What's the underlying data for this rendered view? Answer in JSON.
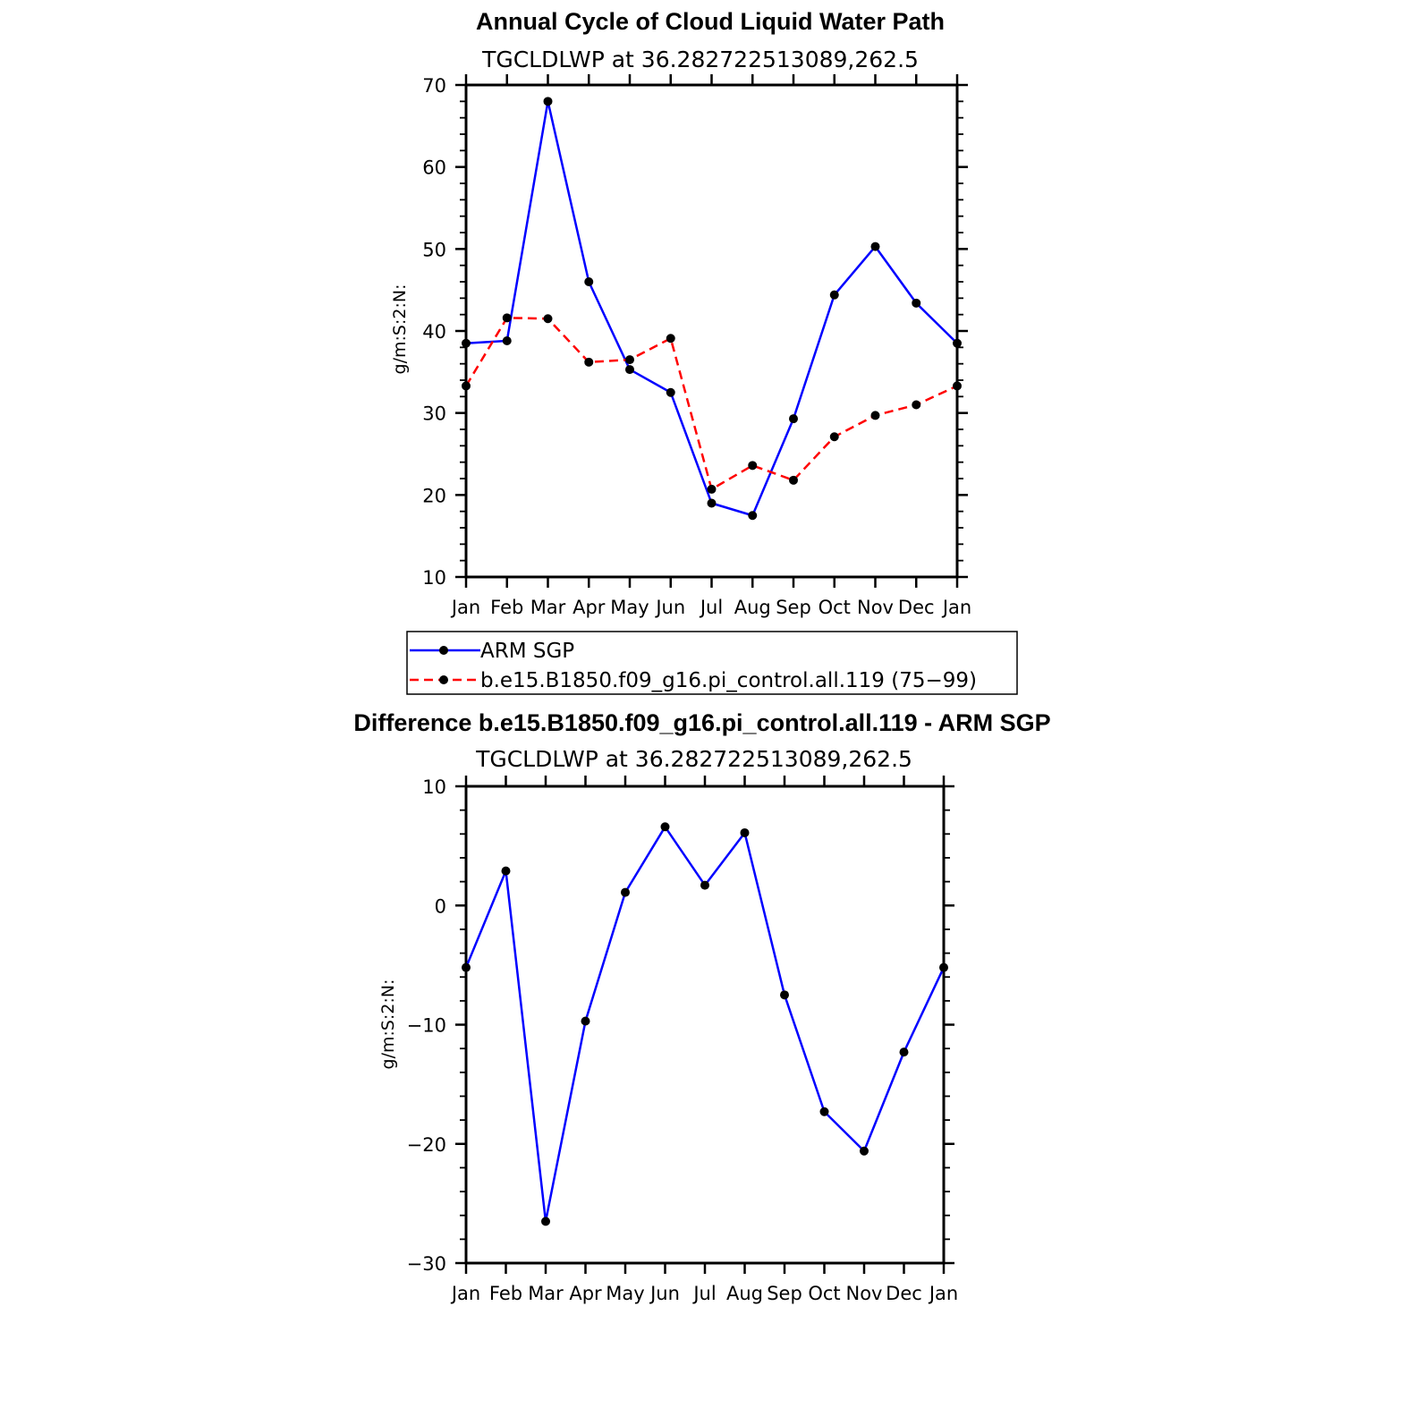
{
  "chart_data": [
    {
      "type": "line",
      "title": "Annual Cycle of Cloud Liquid Water Path",
      "subtitle": "TGCLDLWP  at  36.282722513089,262.5",
      "ylabel": "g/m:S:2:N:",
      "categories": [
        "Jan",
        "Feb",
        "Mar",
        "Apr",
        "May",
        "Jun",
        "Jul",
        "Aug",
        "Sep",
        "Oct",
        "Nov",
        "Dec",
        "Jan"
      ],
      "ylim": [
        10,
        70
      ],
      "yticks": [
        10,
        20,
        30,
        40,
        50,
        60,
        70
      ],
      "series": [
        {
          "name": "ARM SGP",
          "color": "#0000ff",
          "dashed": false,
          "values": [
            38.5,
            38.8,
            68.0,
            46.0,
            35.3,
            32.5,
            19.0,
            17.5,
            29.3,
            44.4,
            50.3,
            43.4,
            38.5
          ]
        },
        {
          "name": "b.e15.B1850.f09_g16.pi_control.all.119 (75−99)",
          "color": "#ff0000",
          "dashed": true,
          "values": [
            33.3,
            41.6,
            41.5,
            36.2,
            36.5,
            39.1,
            20.7,
            23.6,
            21.8,
            27.1,
            29.7,
            31.0,
            33.3
          ]
        }
      ],
      "legend": "below"
    },
    {
      "type": "line",
      "title": "Difference b.e15.B1850.f09_g16.pi_control.all.119 - ARM SGP",
      "subtitle": "TGCLDLWP  at  36.282722513089,262.5",
      "ylabel": "g/m:S:2:N:",
      "categories": [
        "Jan",
        "Feb",
        "Mar",
        "Apr",
        "May",
        "Jun",
        "Jul",
        "Aug",
        "Sep",
        "Oct",
        "Nov",
        "Dec",
        "Jan"
      ],
      "ylim": [
        -30,
        10
      ],
      "yticks": [
        -30,
        -20,
        -10,
        0,
        10
      ],
      "ytick_labels": [
        "−30",
        "−20",
        "−10",
        "0",
        "10"
      ],
      "series": [
        {
          "color": "#0000ff",
          "dashed": false,
          "values": [
            -5.2,
            2.9,
            -26.5,
            -9.7,
            1.1,
            6.6,
            1.7,
            6.1,
            -7.5,
            -17.3,
            -20.6,
            -12.3,
            -5.2
          ]
        }
      ]
    }
  ]
}
